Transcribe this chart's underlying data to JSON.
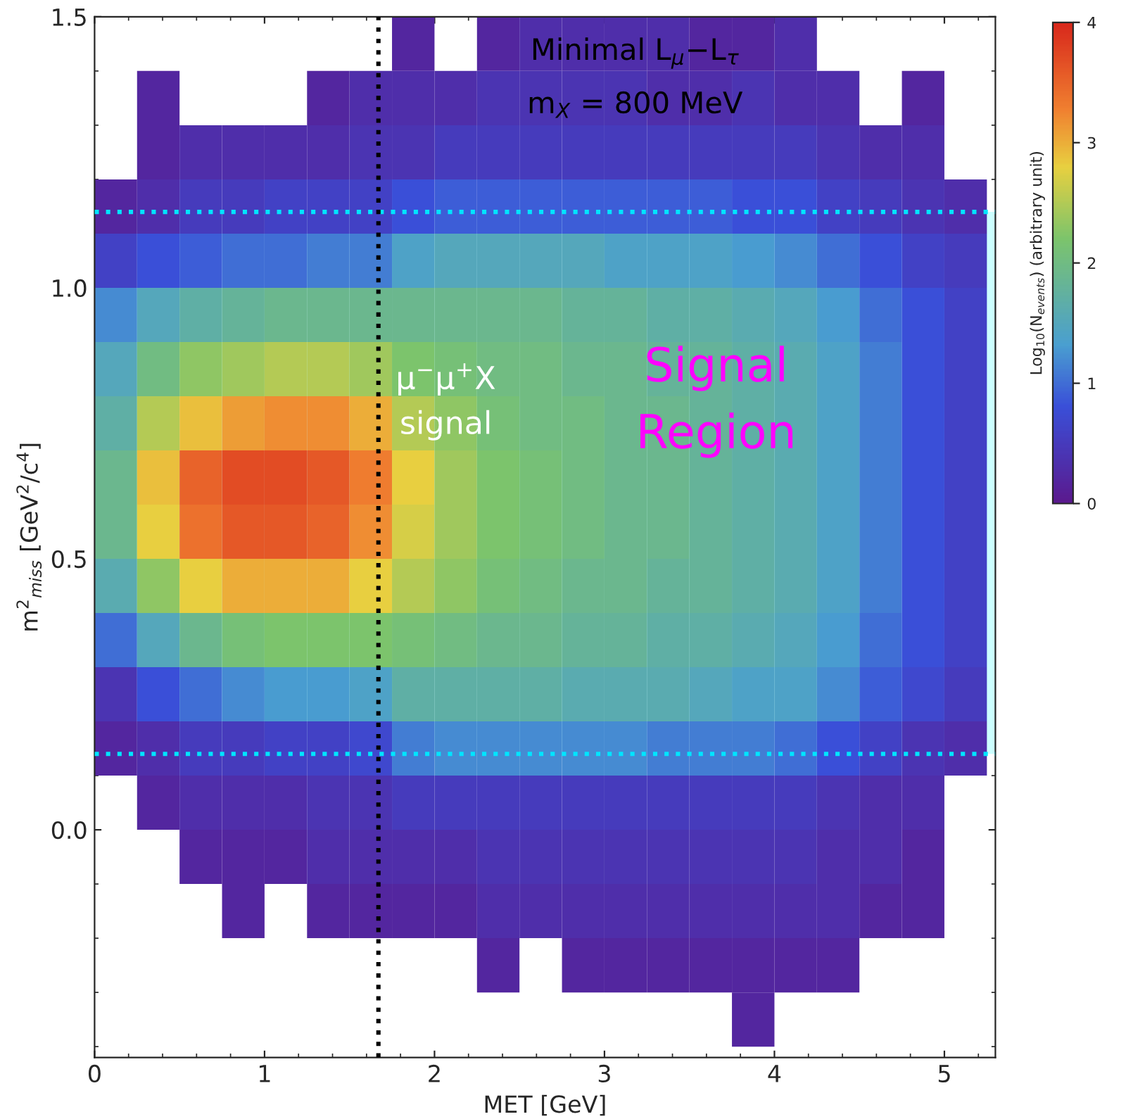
{
  "chart_data": {
    "type": "heatmap",
    "xlabel": "MET [GeV]",
    "ylabel": "m$^{2}$$_{miss}$ [GeV$^{2}$/c$^{4}$]",
    "clabel": "Log$_{10}$(N$_{events}$) (arbitrary unit)",
    "annotations": [
      "Minimal L$_{μ}$−L$_{τ}$",
      "m$_{X}$ = 800 MeV",
      "μ$^{−}$μ$^{+}$X\nsignal",
      "Signal\nRegion"
    ],
    "x": [
      0.125,
      0.375,
      0.625,
      0.875,
      1.125,
      1.375,
      1.625,
      1.875,
      2.125,
      2.375,
      2.625,
      2.875,
      3.125,
      3.375,
      3.625,
      3.875,
      4.125,
      4.375,
      4.625,
      4.875,
      5.125
    ],
    "y": [
      1.45,
      1.35,
      1.25,
      1.15,
      1.05,
      0.95,
      0.85,
      0.75,
      0.65,
      0.55,
      0.45,
      0.35,
      0.25,
      0.15,
      0.05,
      -0.05,
      -0.15,
      -0.25,
      -0.35
    ],
    "cells": [
      [
        null,
        null,
        null,
        null,
        null,
        null,
        null,
        0.2,
        null,
        0.2,
        0.3,
        0.3,
        0.3,
        0.3,
        0.2,
        0.2,
        0.3,
        null,
        null,
        null,
        null
      ],
      [
        null,
        0.2,
        null,
        null,
        null,
        0.2,
        0.3,
        0.3,
        0.3,
        0.4,
        0.4,
        0.4,
        0.4,
        0.3,
        0.3,
        0.4,
        0.3,
        0.3,
        null,
        0.2,
        null
      ],
      [
        null,
        0.2,
        0.3,
        0.3,
        0.3,
        0.3,
        0.4,
        0.4,
        0.5,
        0.5,
        0.5,
        0.5,
        0.5,
        0.5,
        0.5,
        0.5,
        0.5,
        0.4,
        0.3,
        0.3,
        null
      ],
      [
        0.2,
        0.3,
        0.5,
        0.5,
        0.6,
        0.6,
        0.6,
        0.8,
        0.9,
        0.9,
        0.9,
        0.9,
        0.9,
        0.9,
        0.9,
        0.8,
        0.8,
        0.6,
        0.5,
        0.4,
        0.3
      ],
      [
        0.6,
        0.8,
        0.9,
        1.0,
        1.0,
        1.1,
        1.1,
        1.4,
        1.5,
        1.5,
        1.5,
        1.5,
        1.4,
        1.4,
        1.4,
        1.3,
        1.2,
        1.0,
        0.8,
        0.6,
        0.5
      ],
      [
        1.2,
        1.5,
        1.7,
        1.8,
        1.9,
        1.9,
        1.9,
        1.9,
        1.9,
        1.9,
        1.9,
        1.8,
        1.8,
        1.7,
        1.7,
        1.6,
        1.5,
        1.3,
        1.0,
        0.8,
        0.6
      ],
      [
        1.5,
        2.0,
        2.3,
        2.4,
        2.5,
        2.5,
        2.4,
        2.2,
        2.1,
        2.0,
        2.0,
        1.9,
        1.9,
        1.8,
        1.8,
        1.7,
        1.6,
        1.4,
        1.1,
        0.8,
        0.6
      ],
      [
        1.7,
        2.5,
        2.9,
        3.1,
        3.2,
        3.2,
        3.0,
        2.5,
        2.3,
        2.1,
        2.0,
        2.0,
        1.9,
        1.9,
        1.8,
        1.7,
        1.6,
        1.4,
        1.1,
        0.8,
        0.6
      ],
      [
        1.9,
        2.9,
        3.5,
        3.7,
        3.7,
        3.6,
        3.3,
        2.8,
        2.4,
        2.2,
        2.1,
        2.0,
        1.9,
        1.9,
        1.8,
        1.7,
        1.6,
        1.4,
        1.1,
        0.8,
        0.6
      ],
      [
        1.9,
        2.8,
        3.4,
        3.6,
        3.6,
        3.5,
        3.2,
        2.7,
        2.4,
        2.2,
        2.1,
        2.0,
        1.9,
        1.9,
        1.8,
        1.7,
        1.6,
        1.4,
        1.1,
        0.8,
        0.6
      ],
      [
        1.6,
        2.3,
        2.8,
        3.0,
        3.0,
        3.0,
        2.8,
        2.5,
        2.3,
        2.1,
        2.0,
        1.9,
        1.9,
        1.8,
        1.8,
        1.7,
        1.6,
        1.4,
        1.1,
        0.8,
        0.6
      ],
      [
        1.0,
        1.5,
        1.9,
        2.1,
        2.2,
        2.2,
        2.2,
        2.1,
        2.0,
        1.9,
        1.9,
        1.8,
        1.8,
        1.7,
        1.7,
        1.6,
        1.5,
        1.3,
        1.0,
        0.8,
        0.6
      ],
      [
        0.4,
        0.8,
        1.0,
        1.2,
        1.3,
        1.3,
        1.4,
        1.7,
        1.7,
        1.7,
        1.7,
        1.6,
        1.6,
        1.6,
        1.5,
        1.4,
        1.4,
        1.2,
        0.9,
        0.7,
        0.5
      ],
      [
        0.2,
        0.3,
        0.5,
        0.5,
        0.6,
        0.6,
        0.7,
        1.1,
        1.2,
        1.2,
        1.2,
        1.2,
        1.2,
        1.1,
        1.1,
        1.1,
        1.0,
        0.8,
        0.6,
        0.4,
        0.3
      ],
      [
        null,
        0.2,
        0.3,
        0.3,
        0.3,
        0.4,
        0.4,
        0.5,
        0.5,
        0.5,
        0.5,
        0.5,
        0.5,
        0.5,
        0.5,
        0.5,
        0.5,
        0.4,
        0.3,
        0.3,
        null
      ],
      [
        null,
        null,
        0.2,
        0.2,
        0.2,
        0.3,
        0.3,
        0.3,
        0.3,
        0.4,
        0.4,
        0.4,
        0.4,
        0.4,
        0.4,
        0.4,
        0.4,
        0.3,
        0.3,
        0.2,
        null
      ],
      [
        null,
        null,
        null,
        0.2,
        null,
        0.2,
        0.2,
        0.2,
        0.2,
        0.3,
        0.3,
        0.3,
        0.3,
        0.3,
        0.3,
        0.3,
        0.3,
        0.3,
        0.2,
        0.2,
        null
      ],
      [
        null,
        null,
        null,
        null,
        null,
        null,
        null,
        null,
        null,
        0.2,
        null,
        0.2,
        0.2,
        0.2,
        0.2,
        0.2,
        0.2,
        0.2,
        null,
        null,
        null
      ],
      [
        null,
        null,
        null,
        null,
        null,
        null,
        null,
        null,
        null,
        null,
        null,
        null,
        null,
        null,
        null,
        0.2,
        null,
        null,
        null,
        null,
        null
      ]
    ],
    "clim": [
      0,
      4
    ],
    "cticks": [
      0,
      1,
      2,
      3,
      4
    ],
    "xlim": [
      0,
      5.3
    ],
    "ylim": [
      -0.42,
      1.5
    ],
    "xticks": [
      0,
      1,
      2,
      3,
      4,
      5
    ],
    "yticks": [
      {
        "value": 0,
        "label": "0.0"
      },
      {
        "value": 0.5,
        "label": "0.5"
      },
      {
        "value": 1,
        "label": "1.0"
      },
      {
        "value": 1.5,
        "label": "1.5"
      }
    ],
    "ref_lines": [
      {
        "axis": "y",
        "value": 1.14,
        "color": "#00e5ff",
        "line_style": "dotted"
      },
      {
        "axis": "y",
        "value": 0.14,
        "color": "#00e5ff",
        "line_style": "dotted"
      },
      {
        "axis": "x",
        "value": 1.67,
        "color": "#000000",
        "line_style": "dotted"
      }
    ],
    "bands": [
      {
        "axis": "y",
        "from": 0.14,
        "to": 1.14,
        "color": "#ccffff"
      }
    ],
    "grid": false
  }
}
